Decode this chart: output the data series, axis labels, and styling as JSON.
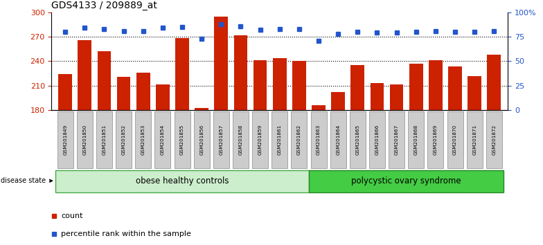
{
  "title": "GDS4133 / 209889_at",
  "samples": [
    "GSM201849",
    "GSM201850",
    "GSM201851",
    "GSM201852",
    "GSM201853",
    "GSM201854",
    "GSM201855",
    "GSM201856",
    "GSM201857",
    "GSM201858",
    "GSM201859",
    "GSM201861",
    "GSM201862",
    "GSM201863",
    "GSM201864",
    "GSM201865",
    "GSM201866",
    "GSM201867",
    "GSM201868",
    "GSM201869",
    "GSM201870",
    "GSM201871",
    "GSM201872"
  ],
  "counts": [
    224,
    266,
    252,
    221,
    226,
    212,
    268,
    183,
    295,
    272,
    241,
    244,
    240,
    186,
    202,
    235,
    213,
    212,
    237,
    241,
    234,
    222,
    248
  ],
  "percentiles": [
    80,
    84,
    83,
    81,
    81,
    84,
    85,
    73,
    88,
    86,
    82,
    83,
    83,
    71,
    78,
    80,
    79,
    79,
    80,
    81,
    80,
    80,
    81
  ],
  "group1_label": "obese healthy controls",
  "group2_label": "polycystic ovary syndrome",
  "group1_count": 13,
  "group2_count": 10,
  "bar_color": "#CC2200",
  "dot_color": "#2255CC",
  "ylim_left": [
    180,
    300
  ],
  "ylim_right": [
    0,
    100
  ],
  "yticks_left": [
    180,
    210,
    240,
    270,
    300
  ],
  "yticks_right": [
    0,
    25,
    50,
    75,
    100
  ],
  "grid_values": [
    210,
    240,
    270
  ],
  "group1_color": "#CCEECC",
  "group2_color": "#44CC44",
  "group1_edge": "#44AA44",
  "group2_edge": "#228822",
  "label_color_left": "#CC2200",
  "label_color_right": "#2255CC",
  "tick_bg_color": "#CCCCCC",
  "tick_edge_color": "#888888"
}
